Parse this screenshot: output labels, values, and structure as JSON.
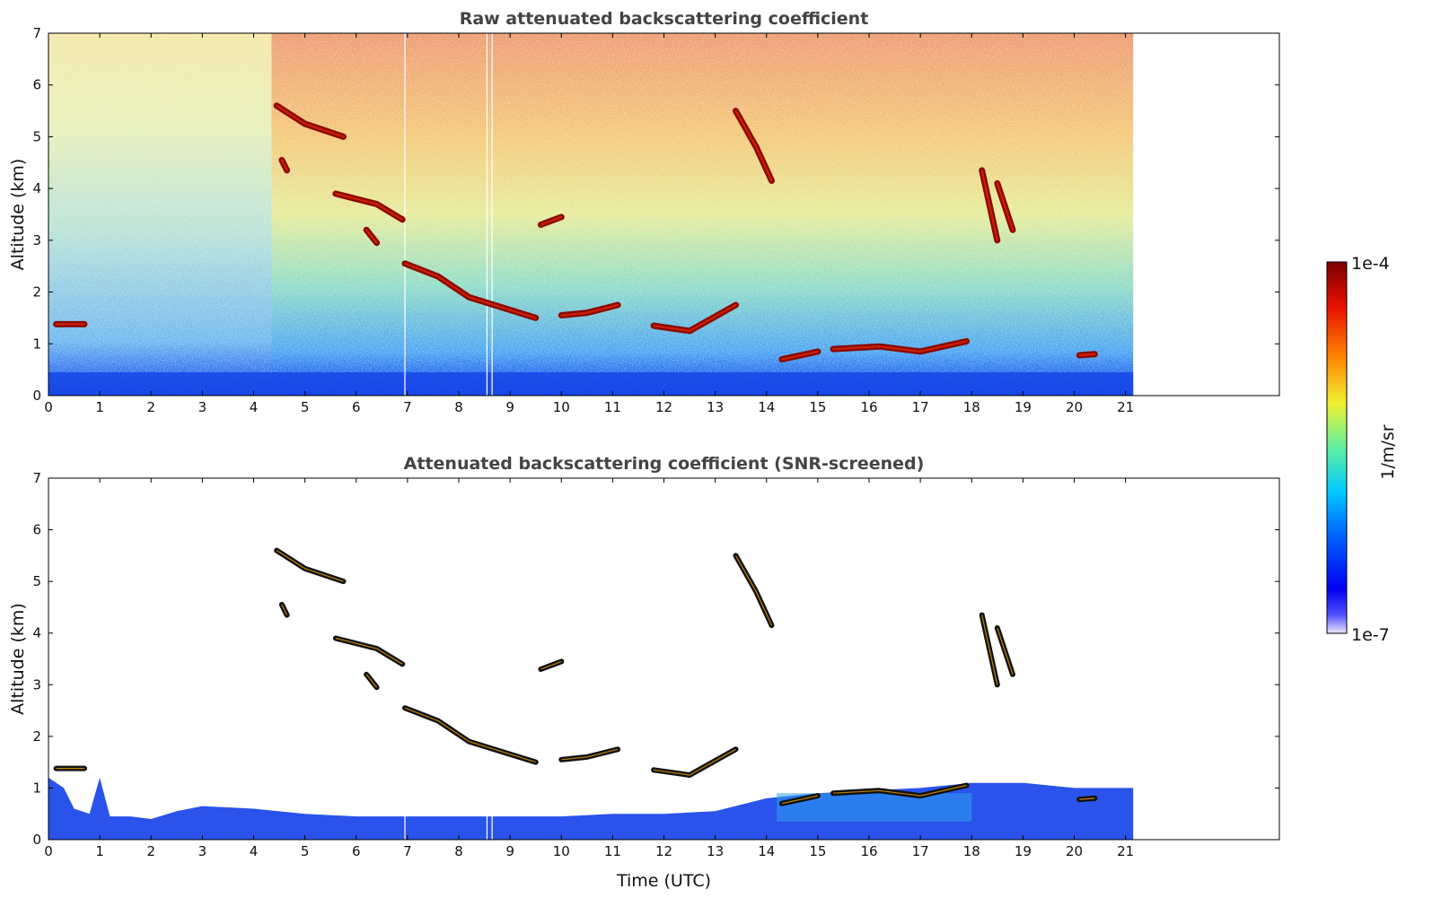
{
  "chart_data": [
    {
      "type": "heatmap",
      "title": "Raw attenuated backscattering coefficient",
      "xlabel": "",
      "ylabel": "Altitude (km)",
      "xlim": [
        0,
        24
      ],
      "ylim": [
        0,
        7
      ],
      "x_ticks": [
        "0",
        "1",
        "2",
        "3",
        "4",
        "5",
        "6",
        "7",
        "8",
        "9",
        "10",
        "11",
        "12",
        "13",
        "14",
        "15",
        "16",
        "17",
        "18",
        "19",
        "20",
        "21"
      ],
      "y_ticks": [
        "0",
        "1",
        "2",
        "3",
        "4",
        "5",
        "6",
        "7"
      ],
      "data_end_time": 21.15,
      "cloud_layers": [
        {
          "x": [
            0.15,
            0.7
          ],
          "y": [
            1.38,
            1.38
          ]
        },
        {
          "x": [
            4.45,
            5.0,
            5.75
          ],
          "y": [
            5.6,
            5.25,
            5.0
          ]
        },
        {
          "x": [
            4.55,
            4.65
          ],
          "y": [
            4.55,
            4.35
          ]
        },
        {
          "x": [
            5.6,
            6.4,
            6.9
          ],
          "y": [
            3.9,
            3.7,
            3.4
          ]
        },
        {
          "x": [
            6.2,
            6.4
          ],
          "y": [
            3.2,
            2.95
          ]
        },
        {
          "x": [
            6.95,
            7.6,
            8.2,
            9.5
          ],
          "y": [
            2.55,
            2.3,
            1.9,
            1.5
          ]
        },
        {
          "x": [
            9.6,
            10.0
          ],
          "y": [
            3.3,
            3.45
          ]
        },
        {
          "x": [
            10.0,
            10.5,
            11.1
          ],
          "y": [
            1.55,
            1.6,
            1.75
          ]
        },
        {
          "x": [
            11.8,
            12.5,
            13.4
          ],
          "y": [
            1.35,
            1.25,
            1.75
          ]
        },
        {
          "x": [
            13.4,
            13.8,
            14.1
          ],
          "y": [
            5.5,
            4.8,
            4.15
          ]
        },
        {
          "x": [
            14.3,
            15.0
          ],
          "y": [
            0.7,
            0.85
          ]
        },
        {
          "x": [
            15.3,
            16.2,
            17.0,
            17.9
          ],
          "y": [
            0.9,
            0.95,
            0.85,
            1.05
          ]
        },
        {
          "x": [
            18.2,
            18.5
          ],
          "y": [
            4.35,
            3.0
          ]
        },
        {
          "x": [
            18.5,
            18.8
          ],
          "y": [
            4.1,
            3.2
          ]
        },
        {
          "x": [
            20.1,
            20.4
          ],
          "y": [
            0.78,
            0.8
          ]
        }
      ]
    },
    {
      "type": "heatmap",
      "title": "Attenuated backscattering coefficient (SNR-screened)",
      "xlabel": "Time (UTC)",
      "ylabel": "Altitude (km)",
      "xlim": [
        0,
        24
      ],
      "ylim": [
        0,
        7
      ],
      "x_ticks": [
        "0",
        "1",
        "2",
        "3",
        "4",
        "5",
        "6",
        "7",
        "8",
        "9",
        "10",
        "11",
        "12",
        "13",
        "14",
        "15",
        "16",
        "17",
        "18",
        "19",
        "20",
        "21"
      ],
      "y_ticks": [
        "0",
        "1",
        "2",
        "3",
        "4",
        "5",
        "6",
        "7"
      ],
      "data_end_time": 21.15
    }
  ],
  "colorbar": {
    "label": "1/m/sr",
    "max_label": "1e-4",
    "min_label": "1e-7",
    "scale": "log",
    "colors": [
      "#e8e8f8",
      "#5050ff",
      "#0000f0",
      "#0070ff",
      "#00c8ff",
      "#60f0a0",
      "#f0f030",
      "#ff8000",
      "#e81000",
      "#7a0000"
    ]
  }
}
